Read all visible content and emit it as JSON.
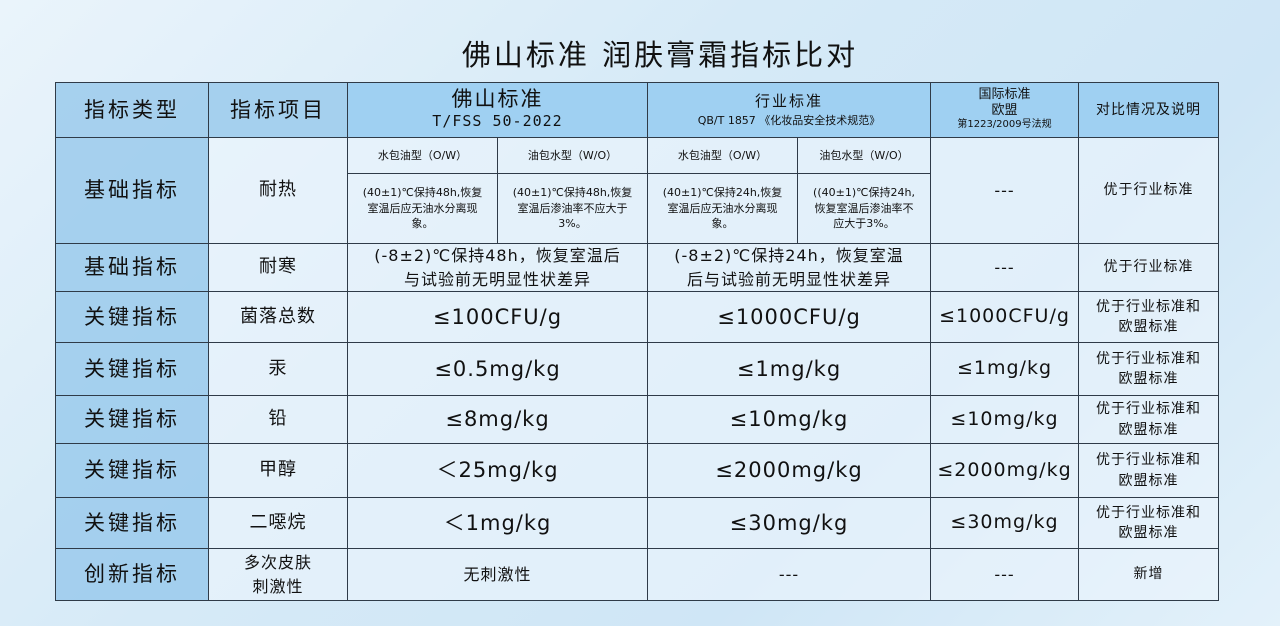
{
  "title": "佛山标准  润肤膏霜指标比对",
  "header": {
    "type": "指标类型",
    "item": "指标项目",
    "foshan": "佛山标准",
    "foshan_code": "T/FSS 50-2022",
    "industry": "行业标准",
    "industry_code": "QB/T 1857 《化妆品安全技术规范》",
    "intl": "国际标准",
    "intl_region": "欧盟",
    "intl_code": "第1223/2009号法规",
    "compare": "对比情况及说明"
  },
  "subheader": {
    "ow": "水包油型（O/W）",
    "wo": "油包水型（W/O）"
  },
  "heat": {
    "type": "基础指标",
    "item": "耐热",
    "foshan_ow": "(40±1)℃保持48h,恢复室温后应无油水分离现象。",
    "foshan_wo": "(40±1)℃保持48h,恢复室温后渗油率不应大于3%。",
    "industry_ow": "(40±1)℃保持24h,恢复室温后应无油水分离现象。",
    "industry_wo": "((40±1)℃保持24h,恢复室温后渗油率不应大于3%。",
    "intl": "---",
    "compare": "优于行业标准"
  },
  "rows": [
    {
      "type": "基础指标",
      "item": "耐寒",
      "foshan": "(-8±2)℃保持48h，恢复室温后与试验前无明显性状差异",
      "industry": "(-8±2)℃保持24h，恢复室温后与试验前无明显性状差异",
      "intl": "---",
      "compare": "优于行业标准"
    },
    {
      "type": "关键指标",
      "item": "菌落总数",
      "foshan": "≤100CFU/g",
      "industry": "≤1000CFU/g",
      "intl": "≤1000CFU/g",
      "compare": "优于行业标准和欧盟标准"
    },
    {
      "type": "关键指标",
      "item": "汞",
      "foshan": "≤0.5mg/kg",
      "industry": "≤1mg/kg",
      "intl": "≤1mg/kg",
      "compare": "优于行业标准和欧盟标准"
    },
    {
      "type": "关键指标",
      "item": "铅",
      "foshan": "≤8mg/kg",
      "industry": "≤10mg/kg",
      "intl": "≤10mg/kg",
      "compare": "优于行业标准和欧盟标准"
    },
    {
      "type": "关键指标",
      "item": "甲醇",
      "foshan": "＜25mg/kg",
      "industry": "≤2000mg/kg",
      "intl": "≤2000mg/kg",
      "compare": "优于行业标准和欧盟标准"
    },
    {
      "type": "关键指标",
      "item": "二噁烷",
      "foshan": "＜1mg/kg",
      "industry": "≤30mg/kg",
      "intl": "≤30mg/kg",
      "compare": "优于行业标准和欧盟标准"
    },
    {
      "type": "创新指标",
      "item": "多次皮肤刺激性",
      "foshan": "无刺激性",
      "industry": "---",
      "intl": "---",
      "compare": "新增"
    }
  ]
}
